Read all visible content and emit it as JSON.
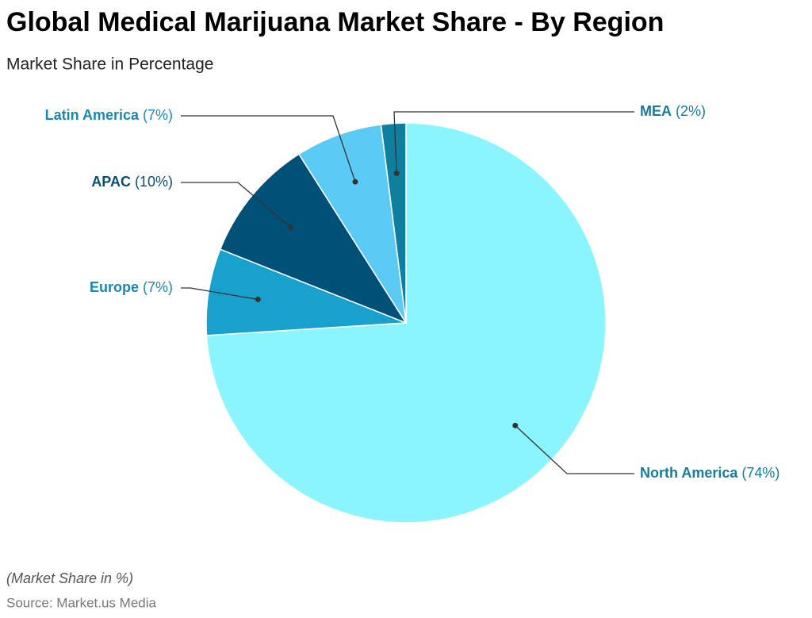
{
  "chart_data": {
    "type": "pie",
    "title": "Global Medical Marijuana Market Share - By Region",
    "subtitle": "Market Share in Percentage",
    "categories": [
      "North America",
      "Europe",
      "APAC",
      "Latin America",
      "MEA"
    ],
    "values": [
      74,
      7,
      10,
      7,
      2
    ],
    "value_labels": [
      "(74%)",
      "(7%)",
      "(10%)",
      "(7%)",
      "(2%)"
    ],
    "colors": [
      "#8af5ff",
      "#18a1cd",
      "#005078",
      "#5bcaf5",
      "#0f7fa0"
    ]
  },
  "footer": {
    "note": "(Market Share in %)",
    "source": "Source: Market.us Media"
  }
}
